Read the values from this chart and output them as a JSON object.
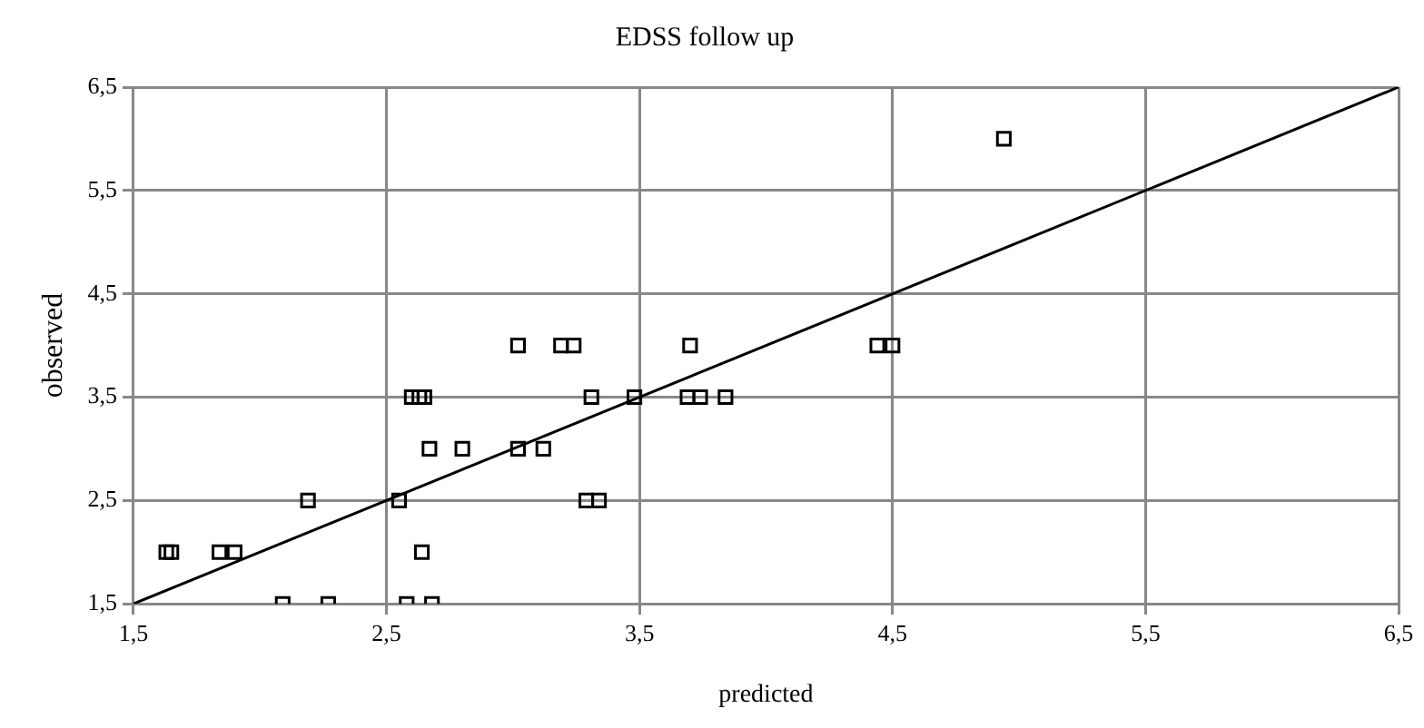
{
  "chart_data": {
    "type": "scatter",
    "title": "EDSS follow up",
    "xlabel": "predicted",
    "ylabel": "observed",
    "marker": "square",
    "grid": true,
    "legend": false,
    "xlim": [
      1.5,
      6.5
    ],
    "ylim": [
      1.5,
      6.5
    ],
    "xticks": [
      {
        "value": 1.5,
        "label": "1,5"
      },
      {
        "value": 2.5,
        "label": "2,5"
      },
      {
        "value": 3.5,
        "label": "3,5"
      },
      {
        "value": 4.5,
        "label": "4,5"
      },
      {
        "value": 5.5,
        "label": "5,5"
      },
      {
        "value": 6.5,
        "label": "6,5"
      }
    ],
    "yticks": [
      {
        "value": 1.5,
        "label": "1,5"
      },
      {
        "value": 2.5,
        "label": "2,5"
      },
      {
        "value": 3.5,
        "label": "3,5"
      },
      {
        "value": 4.5,
        "label": "4,5"
      },
      {
        "value": 5.5,
        "label": "5,5"
      },
      {
        "value": 6.5,
        "label": "6,5"
      }
    ],
    "series": [
      {
        "type": "scatter",
        "color": "#000000",
        "x": [
          1.63,
          1.65,
          1.84,
          1.9,
          2.19,
          2.55,
          2.09,
          2.27,
          2.58,
          2.68,
          2.64,
          2.6,
          2.63,
          2.65,
          2.67,
          2.8,
          3.02,
          3.12,
          3.02,
          3.19,
          3.24,
          3.7,
          4.44,
          4.5,
          3.31,
          3.48,
          3.69,
          3.74,
          3.84,
          3.29,
          3.34,
          4.94
        ],
        "values": [
          2,
          2,
          2,
          2,
          2.5,
          2.5,
          1.5,
          1.5,
          1.5,
          1.5,
          2,
          3.5,
          3.5,
          3.5,
          3,
          3,
          3,
          3,
          4,
          4,
          4,
          4,
          4,
          4,
          3.5,
          3.5,
          3.5,
          3.5,
          3.5,
          2.5,
          2.5,
          6
        ]
      },
      {
        "type": "line",
        "color": "#000000",
        "marker": "none",
        "x": [
          1.5,
          6.5
        ],
        "values": [
          1.5,
          6.5
        ]
      }
    ]
  }
}
